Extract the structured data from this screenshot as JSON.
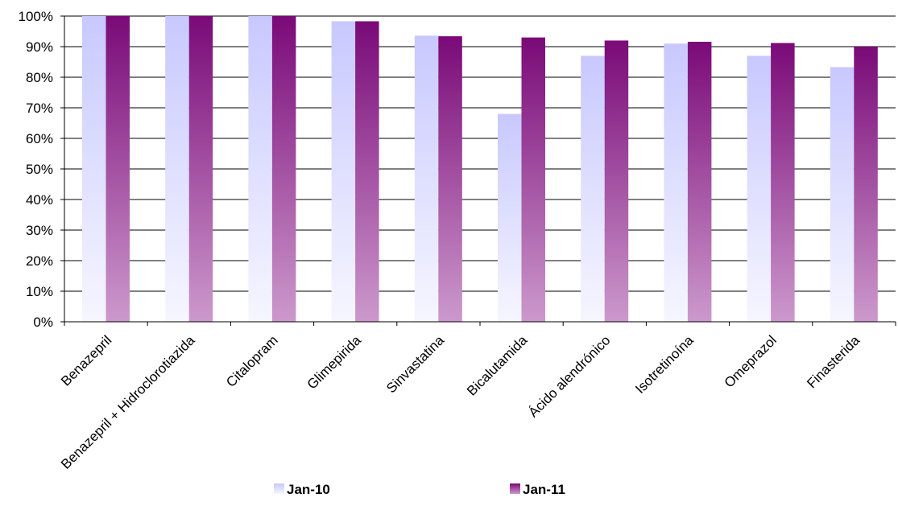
{
  "chart_data": {
    "type": "bar",
    "categories": [
      "Benazepril",
      "Benazepril + Hidroclorotiazida",
      "Citalopram",
      "Glimepirida",
      "Sinvastatina",
      "Bicalutamida",
      "Ácido alendrónico",
      "Isotretinoína",
      "Omeprazol",
      "Finasterida"
    ],
    "series": [
      {
        "name": "Jan-10",
        "values": [
          100,
          100,
          100,
          98.3,
          93.6,
          68,
          87,
          91,
          87,
          83.3
        ],
        "color_top": "#c8c8ff",
        "color_bottom": "#f6f6ff"
      },
      {
        "name": "Jan-11",
        "values": [
          100,
          100,
          100,
          98.3,
          93.4,
          93,
          92,
          91.6,
          91.2,
          90
        ],
        "color_top": "#7a0a78",
        "color_bottom": "#cc99cc"
      }
    ],
    "y_ticks": [
      "0%",
      "10%",
      "20%",
      "30%",
      "40%",
      "50%",
      "60%",
      "70%",
      "80%",
      "90%",
      "100%"
    ],
    "ylim": [
      0,
      100
    ],
    "grid": true,
    "legend_position": "bottom"
  }
}
